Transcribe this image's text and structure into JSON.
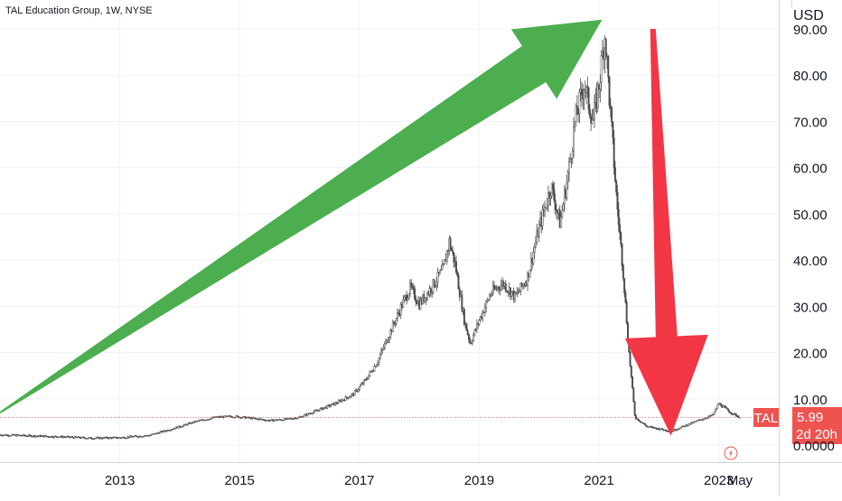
{
  "chart_data": {
    "type": "candlestick",
    "title": "TAL Education Group, 1W, NYSE",
    "currency": "USD",
    "ylim": [
      -2,
      92
    ],
    "yticks": [
      0,
      10,
      20,
      30,
      40,
      50,
      60,
      70,
      80,
      90
    ],
    "ytick_labels": [
      "0.0000",
      "10.00",
      "20.00",
      "30.00",
      "40.00",
      "50.00",
      "60.00",
      "70.00",
      "80.00",
      "90.00"
    ],
    "xlim": [
      2011.0,
      2024.0
    ],
    "xticks": [
      {
        "x": 2013.0,
        "label": "2013"
      },
      {
        "x": 2015.0,
        "label": "2015"
      },
      {
        "x": 2017.0,
        "label": "2017"
      },
      {
        "x": 2019.0,
        "label": "2019"
      },
      {
        "x": 2021.0,
        "label": "2021"
      },
      {
        "x": 2023.0,
        "label": "2023"
      },
      {
        "x": 2023.35,
        "label": "May"
      }
    ],
    "colors": {
      "up": "#26a69a",
      "down": "#ef5350",
      "candle_outline": "#4a4a4a",
      "last_price": "#ef5350",
      "arrow_up": "#4cae4f",
      "arrow_down": "#f23645"
    },
    "price_path": [
      [
        2011.0,
        2.2
      ],
      [
        2011.5,
        2.0
      ],
      [
        2012.0,
        1.8
      ],
      [
        2012.5,
        1.5
      ],
      [
        2013.0,
        1.6
      ],
      [
        2013.5,
        2.1
      ],
      [
        2014.0,
        4.0
      ],
      [
        2014.3,
        5.2
      ],
      [
        2014.6,
        6.0
      ],
      [
        2014.9,
        6.2
      ],
      [
        2015.2,
        5.8
      ],
      [
        2015.5,
        5.3
      ],
      [
        2015.8,
        5.6
      ],
      [
        2016.0,
        6.0
      ],
      [
        2016.3,
        7.5
      ],
      [
        2016.6,
        9.0
      ],
      [
        2016.9,
        11.0
      ],
      [
        2017.1,
        14.0
      ],
      [
        2017.3,
        18.0
      ],
      [
        2017.5,
        24.0
      ],
      [
        2017.7,
        30.0
      ],
      [
        2017.85,
        34.0
      ],
      [
        2018.0,
        30.5
      ],
      [
        2018.2,
        34.0
      ],
      [
        2018.4,
        38.0
      ],
      [
        2018.5,
        44.0
      ],
      [
        2018.6,
        39.0
      ],
      [
        2018.75,
        27.0
      ],
      [
        2018.85,
        22.0
      ],
      [
        2019.0,
        27.0
      ],
      [
        2019.2,
        33.0
      ],
      [
        2019.4,
        35.0
      ],
      [
        2019.6,
        32.0
      ],
      [
        2019.8,
        36.0
      ],
      [
        2020.0,
        47.0
      ],
      [
        2020.2,
        56.0
      ],
      [
        2020.35,
        48.0
      ],
      [
        2020.5,
        60.0
      ],
      [
        2020.6,
        70.0
      ],
      [
        2020.75,
        78.0
      ],
      [
        2020.9,
        70.0
      ],
      [
        2021.0,
        78.0
      ],
      [
        2021.1,
        89.0
      ],
      [
        2021.2,
        70.0
      ],
      [
        2021.3,
        52.0
      ],
      [
        2021.4,
        38.0
      ],
      [
        2021.5,
        20.0
      ],
      [
        2021.6,
        6.0
      ],
      [
        2021.8,
        4.0
      ],
      [
        2022.0,
        3.5
      ],
      [
        2022.2,
        3.0
      ],
      [
        2022.5,
        4.5
      ],
      [
        2022.7,
        5.5
      ],
      [
        2022.9,
        6.5
      ],
      [
        2023.0,
        9.0
      ],
      [
        2023.2,
        7.0
      ],
      [
        2023.35,
        6.0
      ]
    ],
    "last_price": {
      "symbol": "TAL",
      "price": 5.99,
      "price_label": "5.99",
      "countdown": "2d 20h"
    },
    "annotations": [
      {
        "type": "arrow",
        "color": "green",
        "from": [
          2011.0,
          7.0
        ],
        "to": [
          2021.05,
          92.0
        ]
      },
      {
        "type": "arrow",
        "color": "red",
        "from": [
          2021.9,
          90.0
        ],
        "to": [
          2022.2,
          2.0
        ]
      }
    ]
  }
}
